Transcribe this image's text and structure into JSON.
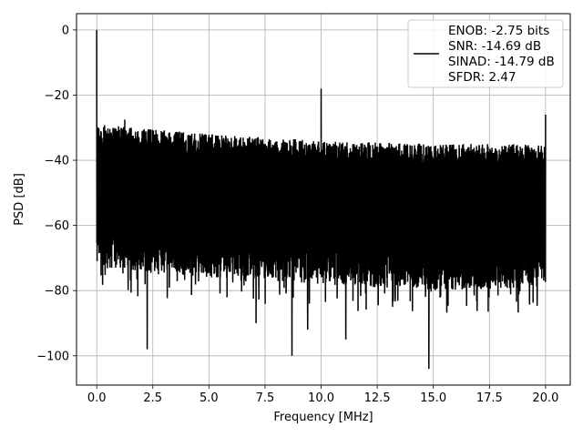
{
  "chart_data": {
    "type": "line",
    "title": "",
    "xlabel": "Frequency [MHz]",
    "ylabel": "PSD [dB]",
    "xlim": [
      -0.9,
      21.1
    ],
    "ylim": [
      -109,
      5
    ],
    "xticks": [
      0.0,
      2.5,
      5.0,
      7.5,
      10.0,
      12.5,
      15.0,
      17.5,
      20.0
    ],
    "xtick_labels": [
      "0.0",
      "2.5",
      "5.0",
      "7.5",
      "10.0",
      "12.5",
      "15.0",
      "17.5",
      "20.0"
    ],
    "yticks": [
      0,
      -20,
      -40,
      -60,
      -80,
      -100
    ],
    "ytick_labels": [
      "0",
      "−20",
      "−40",
      "−60",
      "−80",
      "−100"
    ],
    "grid": true,
    "legend_position": "top-right",
    "series": [
      {
        "color": "#000000",
        "description": "noise-floor PSD spanning about -30 to -80 dB with peaks",
        "x_range": [
          0.0,
          20.0
        ],
        "noise_floor_upper": [
          [
            0.1,
            -29
          ],
          [
            5.0,
            -32
          ],
          [
            10.0,
            -34
          ],
          [
            15.0,
            -35
          ],
          [
            20.0,
            -35
          ]
        ],
        "noise_floor_lower": [
          [
            0.1,
            -73
          ],
          [
            5.0,
            -76
          ],
          [
            10.0,
            -78
          ],
          [
            15.0,
            -80
          ],
          [
            20.0,
            -79
          ]
        ],
        "peaks": [
          {
            "x": 0.0,
            "y": 0
          },
          {
            "x": 1.25,
            "y": -27.5
          },
          {
            "x": 10.0,
            "y": -18
          },
          {
            "x": 20.0,
            "y": -26
          }
        ],
        "dips": [
          {
            "x": 2.25,
            "y": -98
          },
          {
            "x": 8.7,
            "y": -100
          },
          {
            "x": 14.8,
            "y": -104
          },
          {
            "x": 11.1,
            "y": -95
          },
          {
            "x": 9.4,
            "y": -92
          },
          {
            "x": 7.1,
            "y": -90
          }
        ]
      }
    ],
    "legend": {
      "lines": [
        "ENOB: -2.75 bits",
        "SNR: -14.69 dB",
        "SINAD: -14.79 dB",
        "SFDR: 2.47"
      ]
    }
  },
  "colors": {
    "line": "#000000",
    "grid": "#b0b0b0",
    "axes": "#000000",
    "legend_border": "#cccccc"
  }
}
